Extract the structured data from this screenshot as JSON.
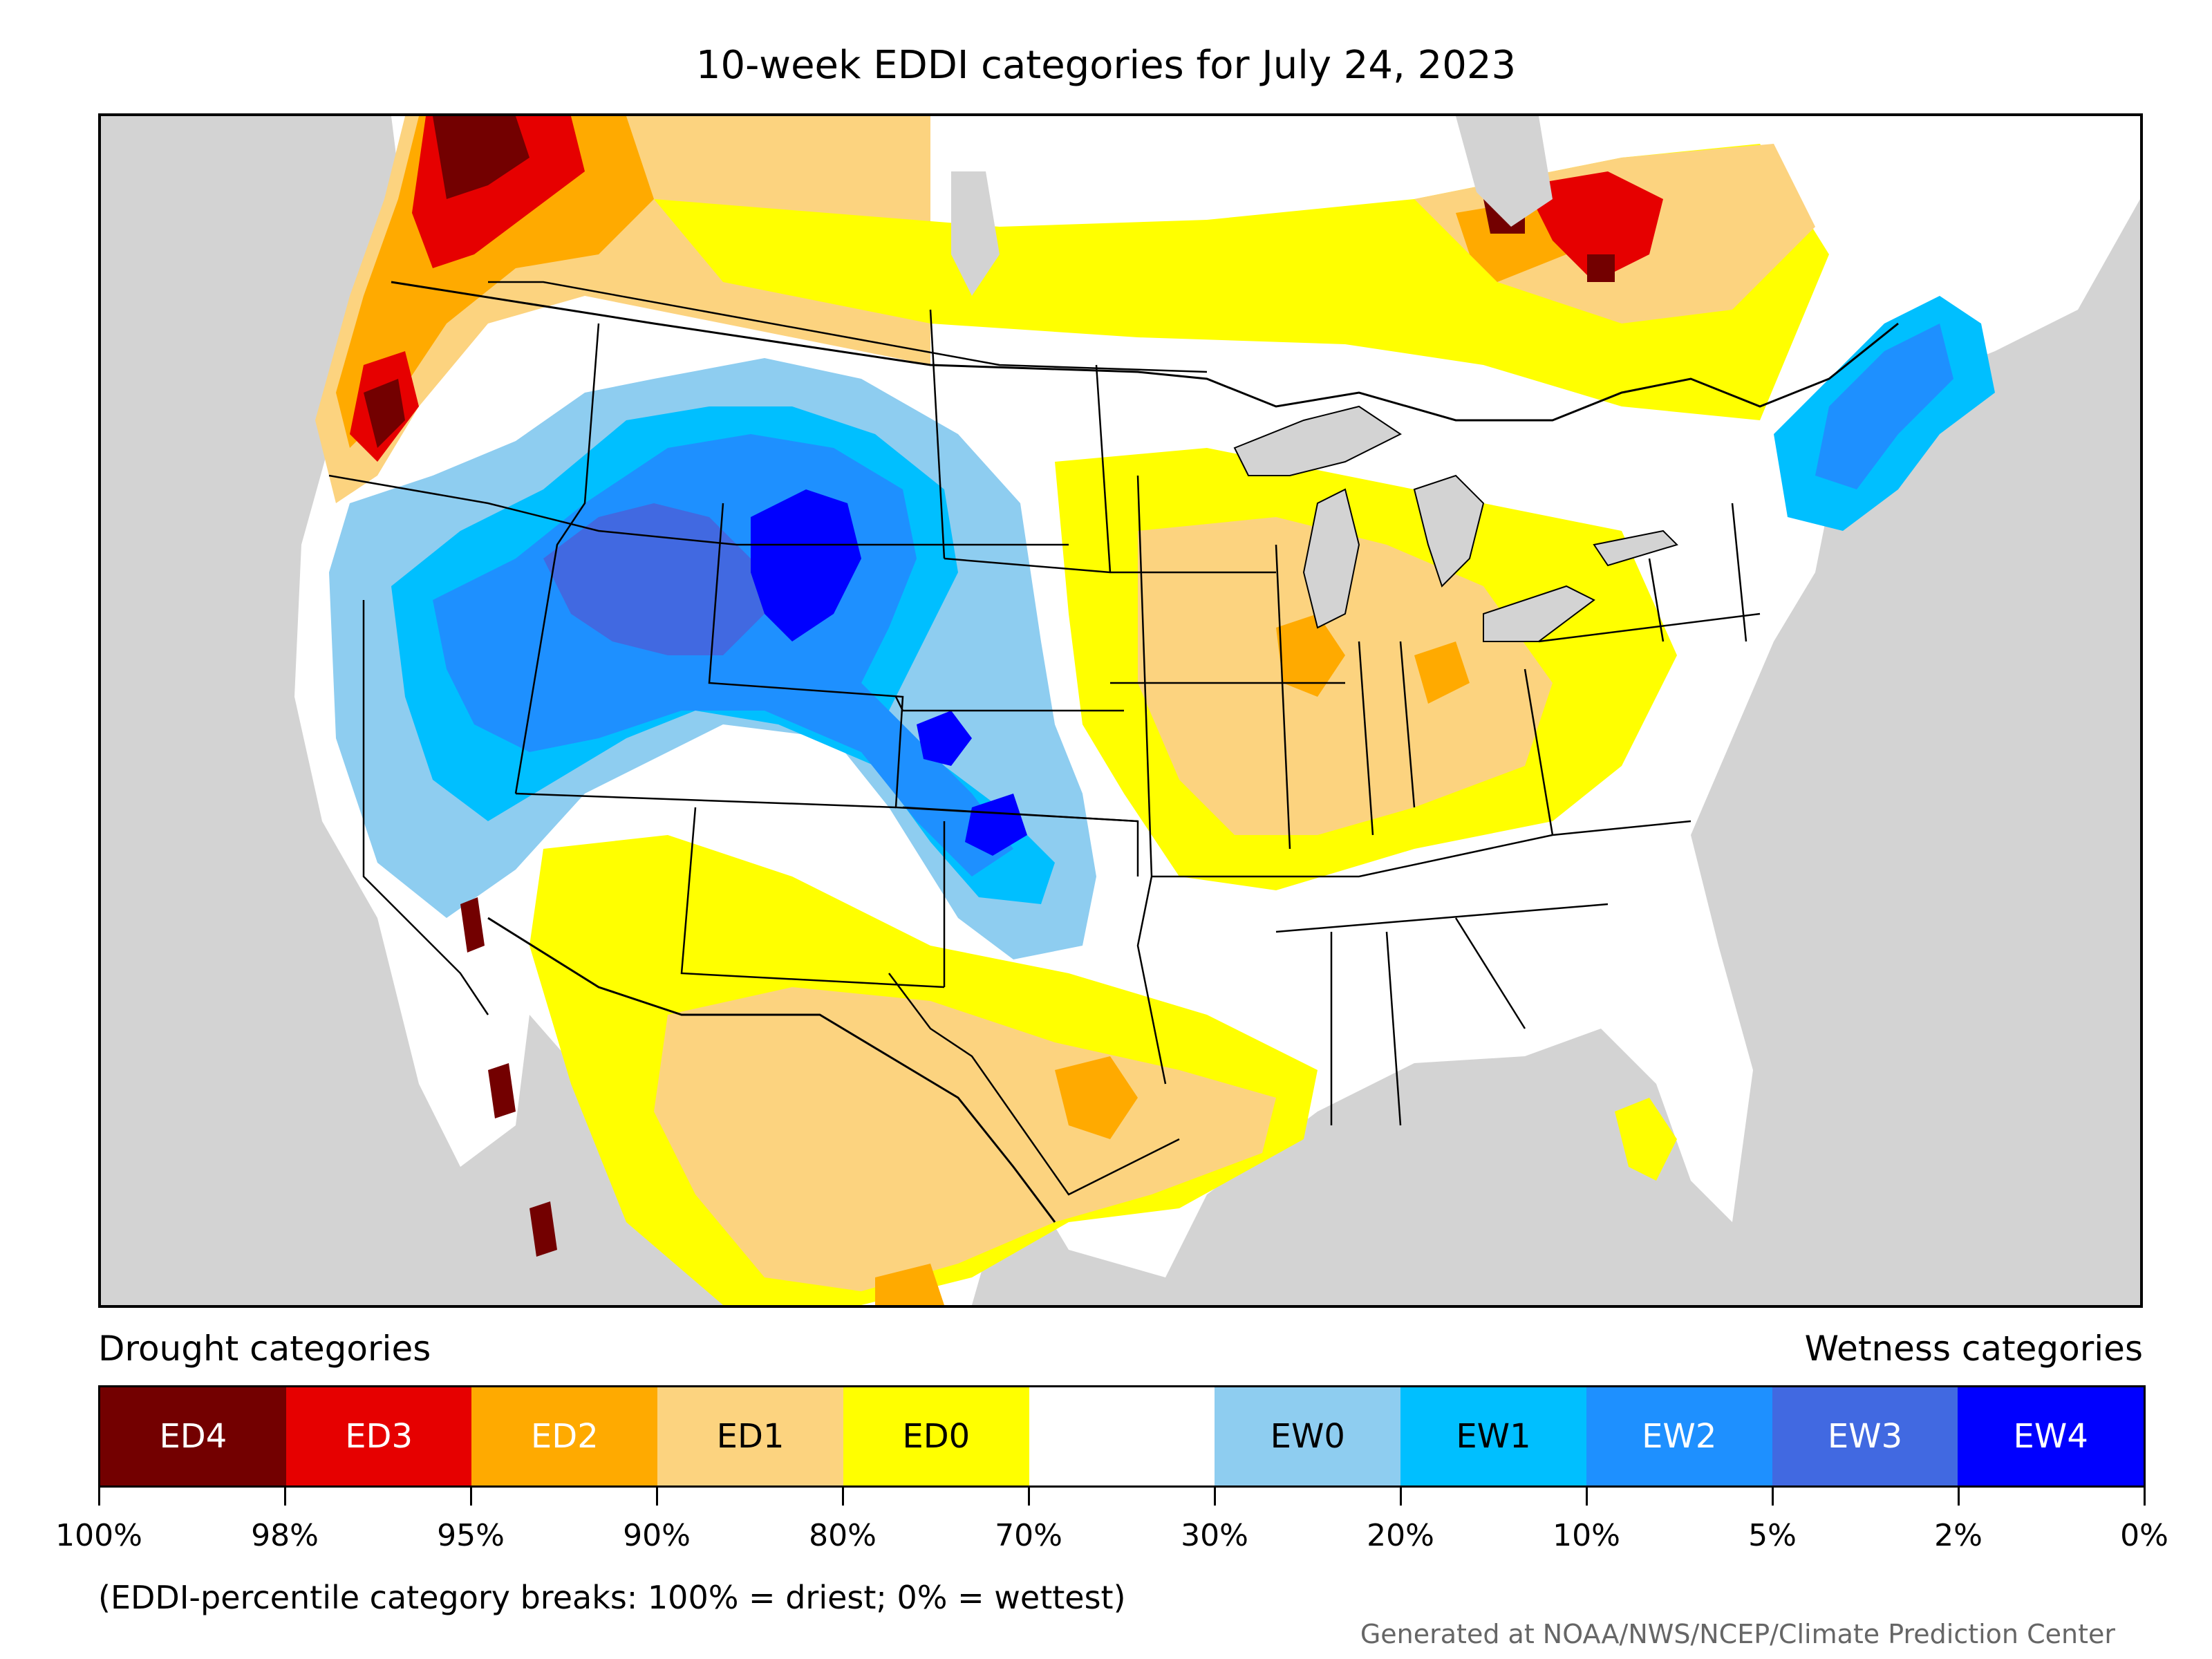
{
  "title": "10-week EDDI categories for July 24, 2023",
  "legend": {
    "drought_label": "Drought categories",
    "wetness_label": "Wetness categories",
    "categories": [
      {
        "label": "ED4",
        "color": "#730000",
        "text_color": "#ffffff"
      },
      {
        "label": "ED3",
        "color": "#e60000",
        "text_color": "#ffffff"
      },
      {
        "label": "ED2",
        "color": "#ffaa00",
        "text_color": "#ffffff"
      },
      {
        "label": "ED1",
        "color": "#fcd37f",
        "text_color": "#000000"
      },
      {
        "label": "ED0",
        "color": "#ffff00",
        "text_color": "#000000"
      },
      {
        "label": "",
        "color": "#ffffff",
        "text_color": "#000000"
      },
      {
        "label": "EW0",
        "color": "#8ecdf0",
        "text_color": "#000000"
      },
      {
        "label": "EW1",
        "color": "#00bfff",
        "text_color": "#000000"
      },
      {
        "label": "EW2",
        "color": "#1e90ff",
        "text_color": "#ffffff"
      },
      {
        "label": "EW3",
        "color": "#4169e1",
        "text_color": "#ffffff"
      },
      {
        "label": "EW4",
        "color": "#0000ff",
        "text_color": "#ffffff"
      }
    ],
    "tick_labels": [
      "100%",
      "98%",
      "95%",
      "90%",
      "80%",
      "70%",
      "30%",
      "20%",
      "10%",
      "5%",
      "2%",
      "0%"
    ]
  },
  "note": "(EDDI-percentile category breaks: 100% = driest; 0% = wettest)",
  "credit": "Generated at NOAA/NWS/NCEP/Climate Prediction Center"
}
